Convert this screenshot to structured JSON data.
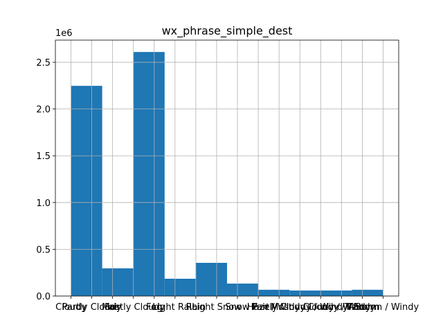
{
  "chart_data": {
    "type": "histogram",
    "title": "wx_phrase_simple_dest",
    "bins": [
      0,
      1.5,
      3,
      4.5,
      6,
      7.5,
      9,
      10.5,
      12,
      13.5,
      15
    ],
    "values": [
      2248000,
      296000,
      2610000,
      185000,
      355000,
      133000,
      67000,
      59000,
      59000,
      67000
    ],
    "color": "#1f77b4",
    "xlim": [
      -0.75,
      15.75
    ],
    "xticks": [
      {
        "value": 0,
        "label": "Cloudy"
      },
      {
        "value": 1,
        "label": "Partly Cloudy"
      },
      {
        "value": 2,
        "label": "Fair"
      },
      {
        "value": 3,
        "label": "Mostly Cloudy"
      },
      {
        "value": 4,
        "label": "Fog"
      },
      {
        "value": 5,
        "label": "Light Rain"
      },
      {
        "value": 6,
        "label": "Rain"
      },
      {
        "value": 7,
        "label": "Light Snow"
      },
      {
        "value": 8,
        "label": "Snow"
      },
      {
        "value": 9,
        "label": "Haze"
      },
      {
        "value": 10,
        "label": "Fair / Windy"
      },
      {
        "value": 11,
        "label": "Partly Cloudy / Windy"
      },
      {
        "value": 12,
        "label": "Mostly Cloudy / Windy"
      },
      {
        "value": 13,
        "label": "Cloudy / Windy"
      },
      {
        "value": 14,
        "label": "T-Storm"
      },
      {
        "value": 15,
        "label": "T-Storm / Windy"
      }
    ],
    "ylim": [
      0,
      2737000
    ],
    "yticks": [
      {
        "value": 0,
        "label": "0.0"
      },
      {
        "value": 500000,
        "label": "0.5"
      },
      {
        "value": 1000000,
        "label": "1.0"
      },
      {
        "value": 1500000,
        "label": "1.5"
      },
      {
        "value": 2000000,
        "label": "2.0"
      },
      {
        "value": 2500000,
        "label": "2.5"
      }
    ],
    "y_offset_label": "1e6",
    "grid": true
  }
}
